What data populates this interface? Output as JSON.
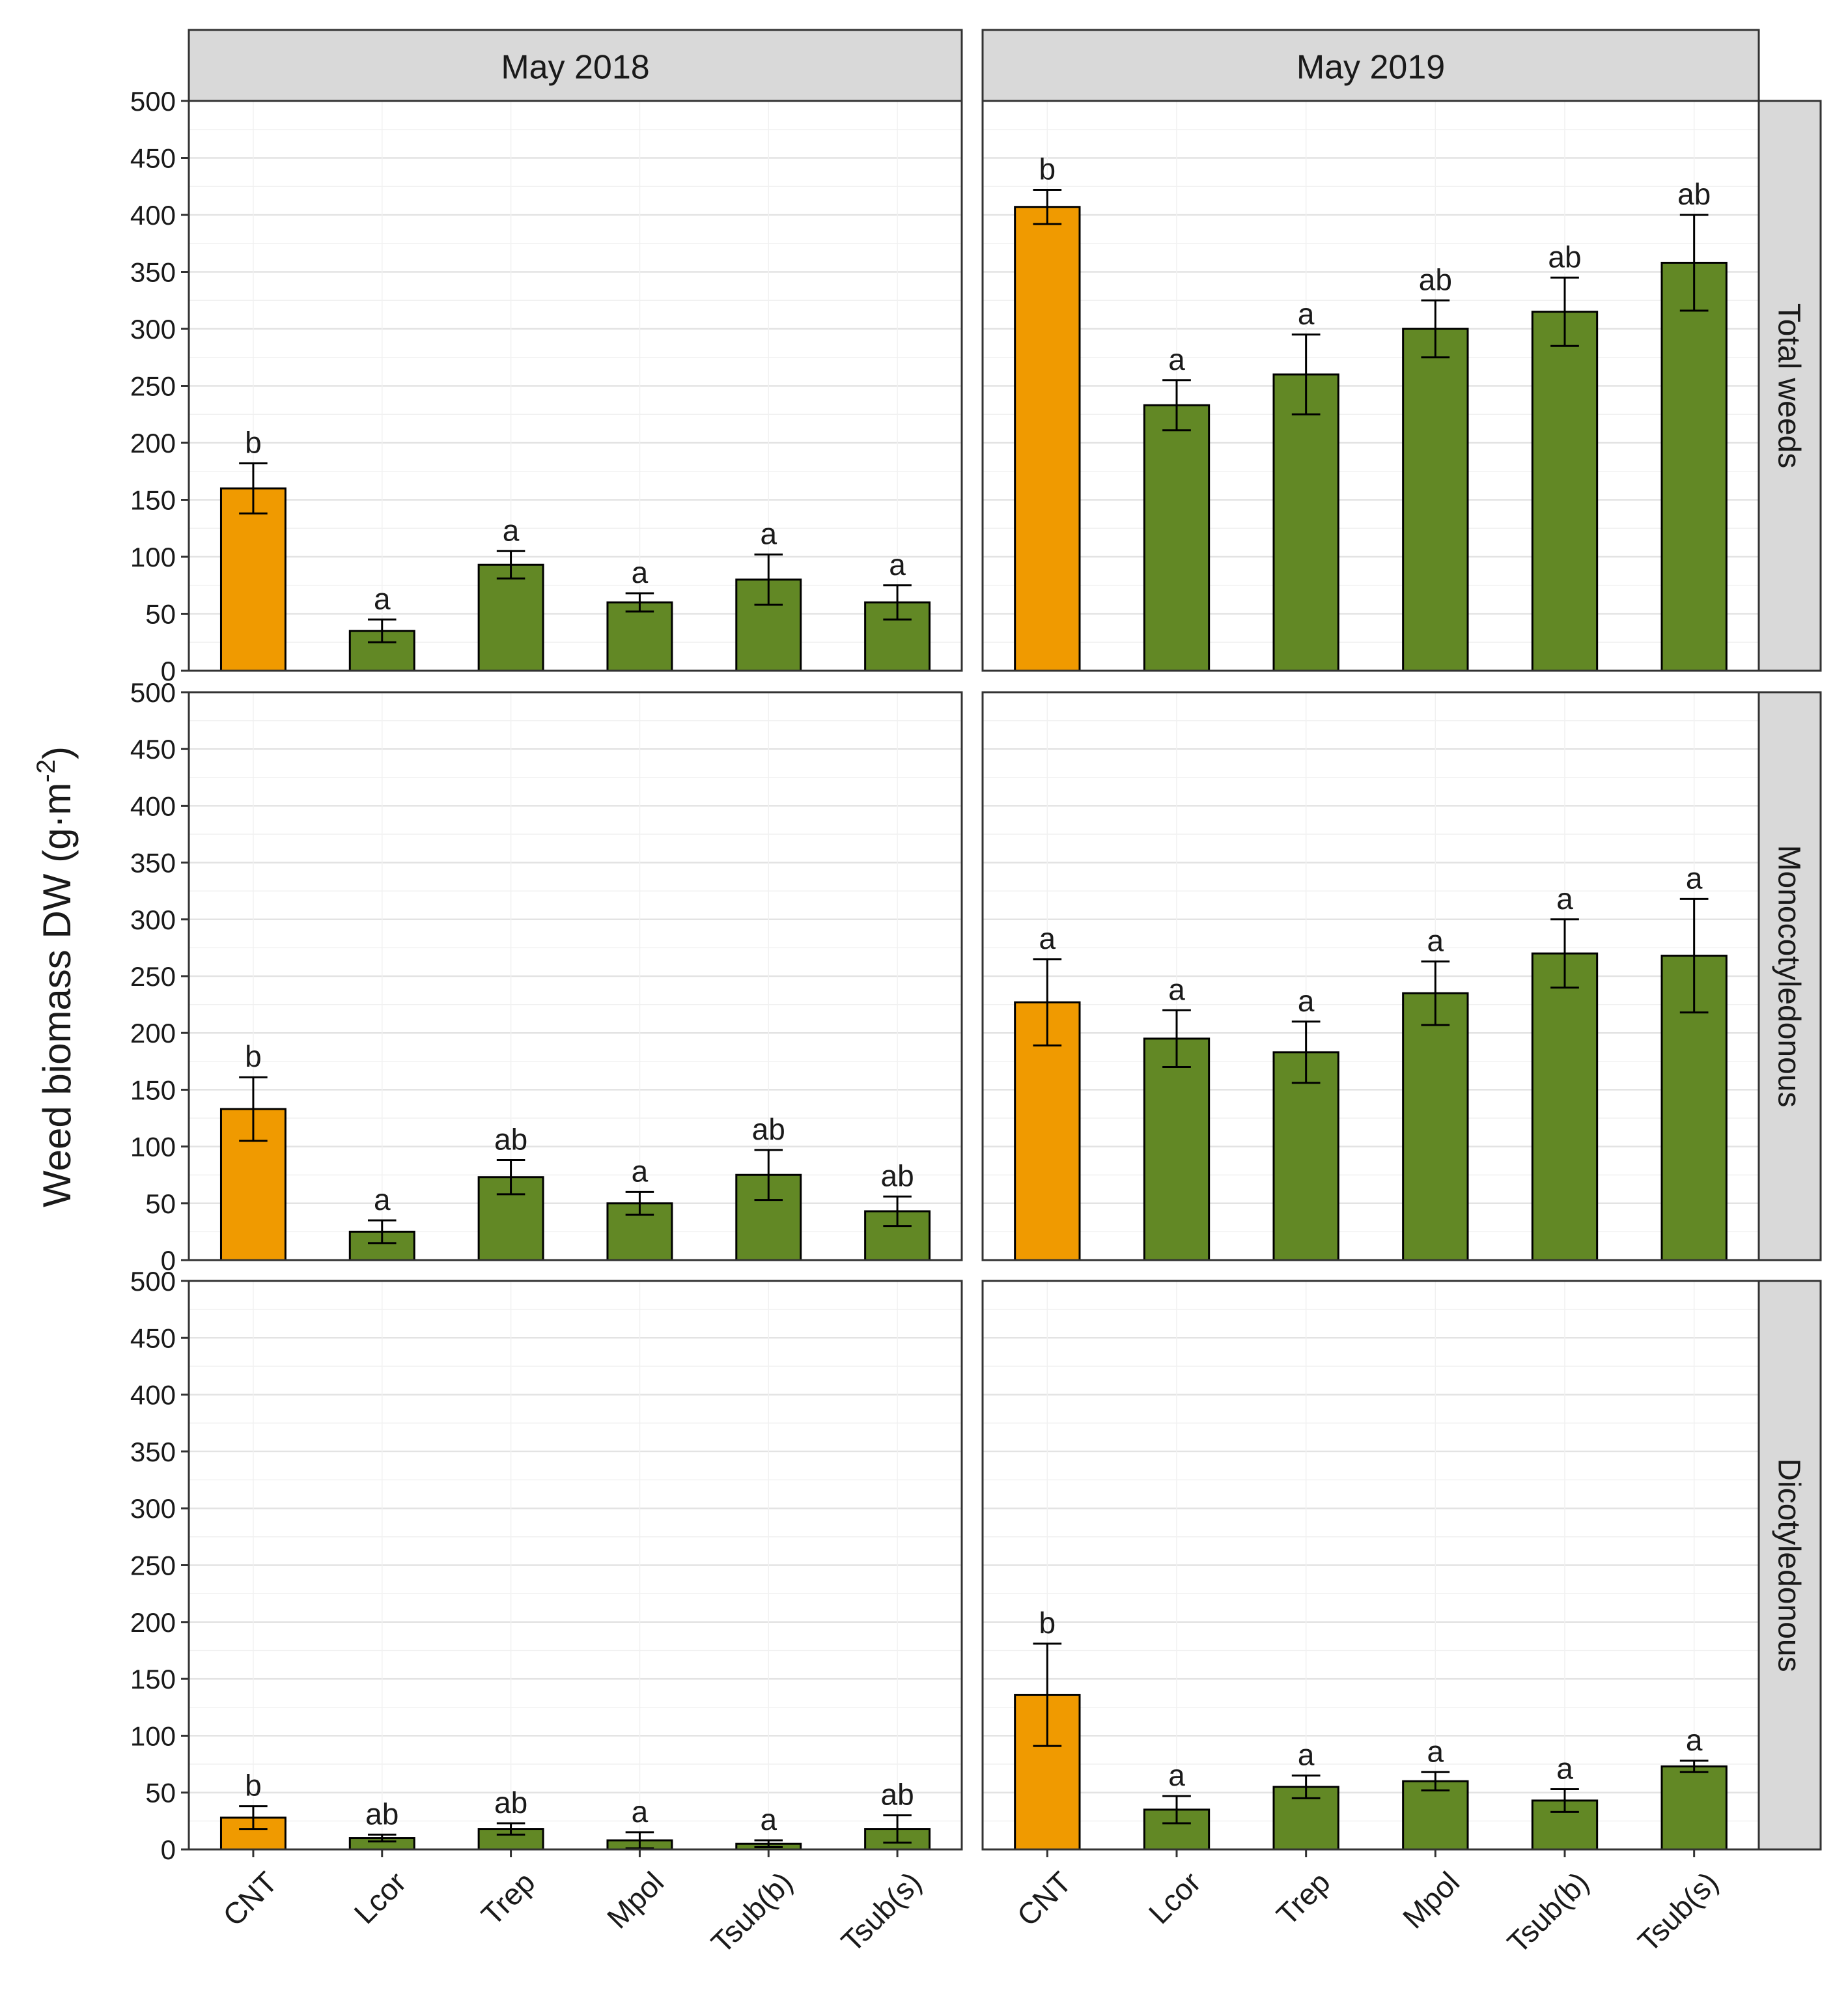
{
  "chart_data": {
    "type": "bar",
    "ylabel_main": "Weed biomass DW (g·m",
    "ylabel_sup": "-2",
    "ylabel_close": ")",
    "ylim": [
      0,
      500
    ],
    "yticks": [
      "0",
      "50",
      "100",
      "150",
      "200",
      "250",
      "300",
      "350",
      "400",
      "450",
      "500"
    ],
    "categories": [
      "CNT",
      "Lcor",
      "Trep",
      "Mpol",
      "Tsub(b)",
      "Tsub(s)"
    ],
    "columns": [
      "May 2018",
      "May 2019"
    ],
    "rows": [
      "Total weeds",
      "Monocotyledonous",
      "Dicotyledonous"
    ],
    "colors": {
      "control": "#f09a00",
      "treatment": "#628825",
      "strip": "#d9d9d9",
      "grid": "#e3e3e3",
      "border": "#333333"
    },
    "panels": [
      {
        "row": 0,
        "col": 0,
        "values": [
          160,
          35,
          93,
          60,
          80,
          60
        ],
        "errors": [
          22,
          10,
          12,
          8,
          22,
          15
        ],
        "letters": [
          "b",
          "a",
          "a",
          "a",
          "a",
          "a"
        ]
      },
      {
        "row": 0,
        "col": 1,
        "values": [
          407,
          233,
          260,
          300,
          315,
          358
        ],
        "errors": [
          15,
          22,
          35,
          25,
          30,
          42
        ],
        "letters": [
          "b",
          "a",
          "a",
          "ab",
          "ab",
          "ab"
        ]
      },
      {
        "row": 1,
        "col": 0,
        "values": [
          133,
          25,
          73,
          50,
          75,
          43
        ],
        "errors": [
          28,
          10,
          15,
          10,
          22,
          13
        ],
        "letters": [
          "b",
          "a",
          "ab",
          "a",
          "ab",
          "ab"
        ]
      },
      {
        "row": 1,
        "col": 1,
        "values": [
          227,
          195,
          183,
          235,
          270,
          268
        ],
        "errors": [
          38,
          25,
          27,
          28,
          30,
          50
        ],
        "letters": [
          "a",
          "a",
          "a",
          "a",
          "a",
          "a"
        ]
      },
      {
        "row": 2,
        "col": 0,
        "values": [
          28,
          10,
          18,
          8,
          5,
          18
        ],
        "errors": [
          10,
          3,
          5,
          7,
          3,
          12
        ],
        "letters": [
          "b",
          "ab",
          "ab",
          "a",
          "a",
          "ab"
        ]
      },
      {
        "row": 2,
        "col": 1,
        "values": [
          136,
          35,
          55,
          60,
          43,
          73
        ],
        "errors": [
          45,
          12,
          10,
          8,
          10,
          5
        ],
        "letters": [
          "b",
          "a",
          "a",
          "a",
          "a",
          "a"
        ]
      }
    ]
  }
}
